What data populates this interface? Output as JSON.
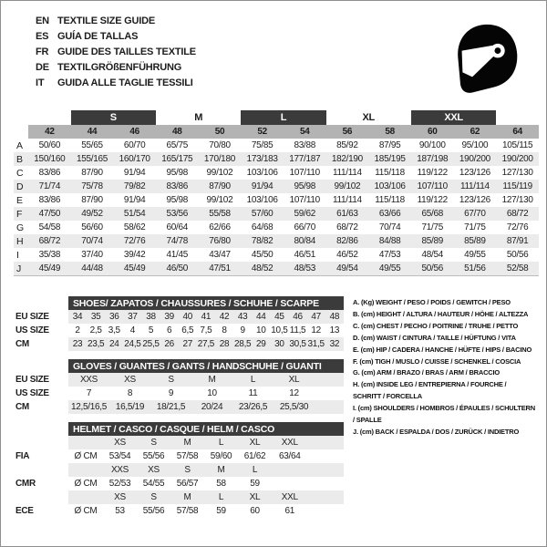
{
  "languages": [
    {
      "code": "EN",
      "title": "TEXTILE SIZE GUIDE"
    },
    {
      "code": "ES",
      "title": "GUÍA DE TALLAS"
    },
    {
      "code": "FR",
      "title": "GUIDE DES TAILLES TEXTILE"
    },
    {
      "code": "DE",
      "title": "TEXTILGRÖßENFÜHRUNG"
    },
    {
      "code": "IT",
      "title": "GUIDA ALLE TAGLIE TESSILI"
    }
  ],
  "header": {
    "helmet_icon": "racing-helmet-icon"
  },
  "main_table": {
    "size_groups": [
      {
        "label": "S",
        "style": "dark"
      },
      {
        "label": "M",
        "style": "plain"
      },
      {
        "label": "L",
        "style": "dark"
      },
      {
        "label": "XL",
        "style": "plain"
      },
      {
        "label": "XXL",
        "style": "dark"
      }
    ],
    "columns": [
      "42",
      "44",
      "46",
      "48",
      "50",
      "52",
      "54",
      "56",
      "58",
      "60",
      "62",
      "64"
    ],
    "rows": [
      {
        "label": "A",
        "values": [
          "50/60",
          "55/65",
          "60/70",
          "65/75",
          "70/80",
          "75/85",
          "83/88",
          "85/92",
          "87/95",
          "90/100",
          "95/100",
          "105/115"
        ]
      },
      {
        "label": "B",
        "values": [
          "150/160",
          "155/165",
          "160/170",
          "165/175",
          "170/180",
          "173/183",
          "177/187",
          "182/190",
          "185/195",
          "187/198",
          "190/200",
          "190/200"
        ]
      },
      {
        "label": "C",
        "values": [
          "83/86",
          "87/90",
          "91/94",
          "95/98",
          "99/102",
          "103/106",
          "107/110",
          "111/114",
          "115/118",
          "119/122",
          "123/126",
          "127/130"
        ]
      },
      {
        "label": "D",
        "values": [
          "71/74",
          "75/78",
          "79/82",
          "83/86",
          "87/90",
          "91/94",
          "95/98",
          "99/102",
          "103/106",
          "107/110",
          "111/114",
          "115/119"
        ]
      },
      {
        "label": "E",
        "values": [
          "83/86",
          "87/90",
          "91/94",
          "95/98",
          "99/102",
          "103/106",
          "107/110",
          "111/114",
          "115/118",
          "119/122",
          "123/126",
          "127/130"
        ]
      },
      {
        "label": "F",
        "values": [
          "47/50",
          "49/52",
          "51/54",
          "53/56",
          "55/58",
          "57/60",
          "59/62",
          "61/63",
          "63/66",
          "65/68",
          "67/70",
          "68/72"
        ]
      },
      {
        "label": "G",
        "values": [
          "54/58",
          "56/60",
          "58/62",
          "60/64",
          "62/66",
          "64/68",
          "66/70",
          "68/72",
          "70/74",
          "71/75",
          "71/75",
          "72/76"
        ]
      },
      {
        "label": "H",
        "values": [
          "68/72",
          "70/74",
          "72/76",
          "74/78",
          "76/80",
          "78/82",
          "80/84",
          "82/86",
          "84/88",
          "85/89",
          "85/89",
          "87/91"
        ]
      },
      {
        "label": "I",
        "values": [
          "35/38",
          "37/40",
          "39/42",
          "41/45",
          "43/47",
          "45/50",
          "46/51",
          "46/52",
          "47/53",
          "48/54",
          "49/55",
          "50/56"
        ]
      },
      {
        "label": "J",
        "values": [
          "45/49",
          "44/48",
          "45/49",
          "46/50",
          "47/51",
          "48/52",
          "48/53",
          "49/54",
          "49/55",
          "50/56",
          "51/56",
          "52/58"
        ]
      }
    ]
  },
  "shoes_table": {
    "title": "SHOES/ ZAPATOS / CHAUSSURES / SCHUHE / SCARPE",
    "rows": [
      {
        "label": "EU SIZE",
        "shaded": true,
        "values": [
          "34",
          "35",
          "36",
          "37",
          "38",
          "39",
          "40",
          "41",
          "42",
          "43",
          "44",
          "45",
          "46",
          "47",
          "48"
        ]
      },
      {
        "label": "US SIZE",
        "shaded": false,
        "values": [
          "2",
          "2,5",
          "3,5",
          "4",
          "5",
          "6",
          "6,5",
          "7,5",
          "8",
          "9",
          "10",
          "10,5",
          "11,5",
          "12",
          "13"
        ]
      },
      {
        "label": "CM",
        "shaded": true,
        "values": [
          "23",
          "23,5",
          "24",
          "24,5",
          "25,5",
          "26",
          "27",
          "27,5",
          "28",
          "28,5",
          "29",
          "30",
          "30,5",
          "31,5",
          "32"
        ]
      }
    ]
  },
  "gloves_table": {
    "title": "GLOVES / GUANTES / GANTS / HANDSCHUHE / GUANTI",
    "rows": [
      {
        "label": "EU SIZE",
        "shaded": true,
        "values": [
          "XXS",
          "XS",
          "S",
          "M",
          "L",
          "XL"
        ]
      },
      {
        "label": "US SIZE",
        "shaded": false,
        "values": [
          "7",
          "8",
          "9",
          "10",
          "11",
          "12"
        ]
      },
      {
        "label": "CM",
        "shaded": true,
        "values": [
          "12,5/16,5",
          "16,5/19",
          "18/21,5",
          "20/24",
          "23/26,5",
          "25,5/30"
        ]
      }
    ]
  },
  "helmet_table": {
    "title": "HELMET / CASCO / CASQUE / HELM / CASCO",
    "rows": [
      {
        "kind": "sizes",
        "shaded": true,
        "values": [
          "XS",
          "S",
          "M",
          "L",
          "XL",
          "XXL"
        ]
      },
      {
        "kind": "data",
        "label": "FIA",
        "unit": "Ø CM",
        "values": [
          "53/54",
          "55/56",
          "57/58",
          "59/60",
          "61/62",
          "63/64"
        ]
      },
      {
        "kind": "sizes",
        "shaded": true,
        "values": [
          "XXS",
          "XS",
          "S",
          "M",
          "L",
          ""
        ]
      },
      {
        "kind": "data",
        "label": "CMR",
        "unit": "Ø CM",
        "values": [
          "52/53",
          "54/55",
          "56/57",
          "58",
          "59",
          ""
        ]
      },
      {
        "kind": "sizes",
        "shaded": true,
        "values": [
          "XS",
          "S",
          "M",
          "L",
          "XL",
          "XXL"
        ]
      },
      {
        "kind": "data",
        "label": "ECE",
        "unit": "Ø CM",
        "values": [
          "53",
          "55/56",
          "57/58",
          "59",
          "60",
          "61"
        ]
      }
    ]
  },
  "legend": {
    "items": [
      "A. (Kg) WEIGHT / PESO / POIDS / GEWITCH / PESO",
      "B. (cm) HEIGHT / ALTURA / HAUTEUR / HÖHE / ALTEZZA",
      "C. (cm) CHEST / PECHO / POITRINE / TRUHE / PETTO",
      "D. (cm) WAIST / CINTURA / TAILLE / HÜFTUNG / VITA",
      "E. (cm) HIP / CADERA / HANCHE / HÜFTE / HIPS / BACINO",
      "F. (cm) TIGH / MUSLO / CUISSE / SCHENKEL / COSCIA",
      "G. (cm) ARM / BRAZO / BRAS / ARM / BRACCIO",
      "H. (cm) INSIDE LEG / ENTREPIERNA / FOURCHE / SCHRITT / FORCELLA",
      "I. (cm) SHOULDERS / HOMBROS / ÉPAULES / SCHULTERN / SPALLE",
      "J. (cm) BACK / ESPALDA / DOS / ZURÜCK / INDIETRO"
    ]
  },
  "colors": {
    "band_dark": "#3b3b3b",
    "column_header_gray": "#b3b3b3",
    "row_stripe": "#ebebeb",
    "text": "#1d1d1d",
    "frame_border": "#8f8f8f"
  }
}
